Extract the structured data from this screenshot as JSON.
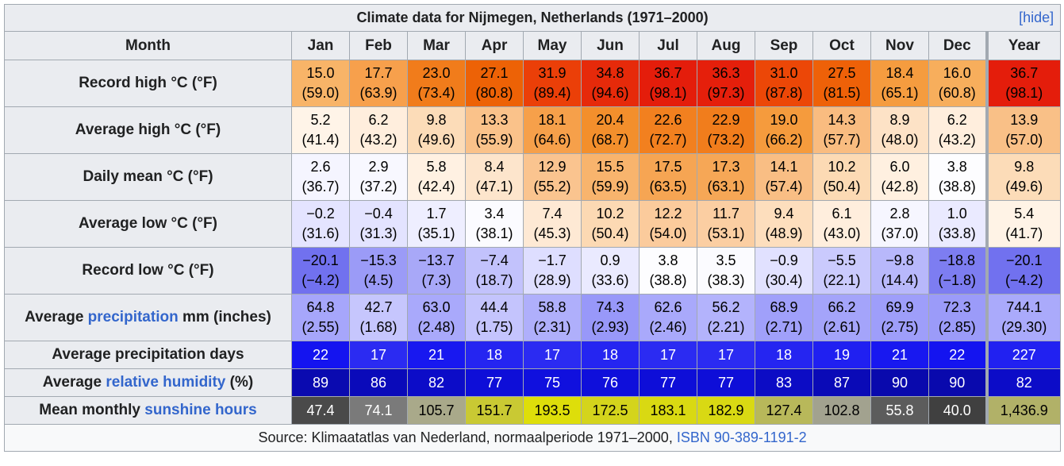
{
  "title": "Climate data for Nijmegen, Netherlands (1971–2000)",
  "hide_label": "[hide]",
  "month_header": "Month",
  "months": [
    "Jan",
    "Feb",
    "Mar",
    "Apr",
    "May",
    "Jun",
    "Jul",
    "Aug",
    "Sep",
    "Oct",
    "Nov",
    "Dec",
    "Year"
  ],
  "rows": [
    {
      "label_pre": "Record high °C (°F)",
      "label_link": "",
      "label_post": "",
      "cells": [
        {
          "c": "15.0",
          "f": "(59.0)",
          "bg": "#f8b468",
          "fg": "#000000"
        },
        {
          "c": "17.7",
          "f": "(63.9)",
          "bg": "#f7a04c",
          "fg": "#000000"
        },
        {
          "c": "23.0",
          "f": "(73.4)",
          "bg": "#f17c1b",
          "fg": "#000000"
        },
        {
          "c": "27.1",
          "f": "(80.8)",
          "bg": "#ed6206",
          "fg": "#000000"
        },
        {
          "c": "31.9",
          "f": "(89.4)",
          "bg": "#eb3f08",
          "fg": "#000000"
        },
        {
          "c": "34.8",
          "f": "(94.6)",
          "bg": "#e62a0a",
          "fg": "#000000"
        },
        {
          "c": "36.7",
          "f": "(98.1)",
          "bg": "#e41d0b",
          "fg": "#000000"
        },
        {
          "c": "36.3",
          "f": "(97.3)",
          "bg": "#e51f0b",
          "fg": "#000000"
        },
        {
          "c": "31.0",
          "f": "(87.8)",
          "bg": "#ec4707",
          "fg": "#000000"
        },
        {
          "c": "27.5",
          "f": "(81.5)",
          "bg": "#ee6108",
          "fg": "#000000"
        },
        {
          "c": "18.4",
          "f": "(65.1)",
          "bg": "#f59c3f",
          "fg": "#000000"
        },
        {
          "c": "16.0",
          "f": "(60.8)",
          "bg": "#f7ae5c",
          "fg": "#000000"
        },
        {
          "c": "36.7",
          "f": "(98.1)",
          "bg": "#e41d0b",
          "fg": "#000000"
        }
      ]
    },
    {
      "label_pre": "Average high °C (°F)",
      "label_link": "",
      "label_post": "",
      "cells": [
        {
          "c": "5.2",
          "f": "(41.4)",
          "bg": "#fff4e8",
          "fg": "#000000"
        },
        {
          "c": "6.2",
          "f": "(43.2)",
          "bg": "#ffeedd",
          "fg": "#000000"
        },
        {
          "c": "9.8",
          "f": "(49.6)",
          "bg": "#fcdcb8",
          "fg": "#000000"
        },
        {
          "c": "13.3",
          "f": "(55.9)",
          "bg": "#fac28a",
          "fg": "#000000"
        },
        {
          "c": "18.1",
          "f": "(64.6)",
          "bg": "#f6a04a",
          "fg": "#000000"
        },
        {
          "c": "20.4",
          "f": "(68.7)",
          "bg": "#f38f2c",
          "fg": "#000000"
        },
        {
          "c": "22.6",
          "f": "(72.7)",
          "bg": "#f2801f",
          "fg": "#000000"
        },
        {
          "c": "22.9",
          "f": "(73.2)",
          "bg": "#f17d1c",
          "fg": "#000000"
        },
        {
          "c": "19.0",
          "f": "(66.2)",
          "bg": "#f59b3d",
          "fg": "#000000"
        },
        {
          "c": "14.3",
          "f": "(57.7)",
          "bg": "#f9bc80",
          "fg": "#000000"
        },
        {
          "c": "8.9",
          "f": "(48.0)",
          "bg": "#fde2c6",
          "fg": "#000000"
        },
        {
          "c": "6.2",
          "f": "(43.2)",
          "bg": "#ffeedd",
          "fg": "#000000"
        },
        {
          "c": "13.9",
          "f": "(57.0)",
          "bg": "#f9c087",
          "fg": "#000000"
        }
      ]
    },
    {
      "label_pre": "Daily mean °C (°F)",
      "label_link": "",
      "label_post": "",
      "cells": [
        {
          "c": "2.6",
          "f": "(36.7)",
          "bg": "#f5f5ff",
          "fg": "#000000"
        },
        {
          "c": "2.9",
          "f": "(37.2)",
          "bg": "#f8f8ff",
          "fg": "#000000"
        },
        {
          "c": "5.8",
          "f": "(42.4)",
          "bg": "#fff1e2",
          "fg": "#000000"
        },
        {
          "c": "8.4",
          "f": "(47.1)",
          "bg": "#fde5cc",
          "fg": "#000000"
        },
        {
          "c": "12.9",
          "f": "(55.2)",
          "bg": "#fac48f",
          "fg": "#000000"
        },
        {
          "c": "15.5",
          "f": "(59.9)",
          "bg": "#f8b46d",
          "fg": "#000000"
        },
        {
          "c": "17.5",
          "f": "(63.5)",
          "bg": "#f6a553",
          "fg": "#000000"
        },
        {
          "c": "17.3",
          "f": "(63.1)",
          "bg": "#f6a756",
          "fg": "#000000"
        },
        {
          "c": "14.1",
          "f": "(57.4)",
          "bg": "#f9be84",
          "fg": "#000000"
        },
        {
          "c": "10.2",
          "f": "(50.4)",
          "bg": "#fcdab4",
          "fg": "#000000"
        },
        {
          "c": "6.0",
          "f": "(42.8)",
          "bg": "#fff0e0",
          "fg": "#000000"
        },
        {
          "c": "3.8",
          "f": "(38.8)",
          "bg": "#fdfdff",
          "fg": "#000000"
        },
        {
          "c": "9.8",
          "f": "(49.6)",
          "bg": "#fcdcb8",
          "fg": "#000000"
        }
      ]
    },
    {
      "label_pre": "Average low °C (°F)",
      "label_link": "",
      "label_post": "",
      "cells": [
        {
          "c": "−0.2",
          "f": "(31.6)",
          "bg": "#e4e4ff",
          "fg": "#000000"
        },
        {
          "c": "−0.4",
          "f": "(31.3)",
          "bg": "#e3e3ff",
          "fg": "#000000"
        },
        {
          "c": "1.7",
          "f": "(35.1)",
          "bg": "#eeeeff",
          "fg": "#000000"
        },
        {
          "c": "3.4",
          "f": "(38.1)",
          "bg": "#fbfbff",
          "fg": "#000000"
        },
        {
          "c": "7.4",
          "f": "(45.3)",
          "bg": "#fee9d4",
          "fg": "#000000"
        },
        {
          "c": "10.2",
          "f": "(50.4)",
          "bg": "#fcd9b3",
          "fg": "#000000"
        },
        {
          "c": "12.2",
          "f": "(54.0)",
          "bg": "#fbcb9c",
          "fg": "#000000"
        },
        {
          "c": "11.7",
          "f": "(53.1)",
          "bg": "#fbcea2",
          "fg": "#000000"
        },
        {
          "c": "9.4",
          "f": "(48.9)",
          "bg": "#fddebd",
          "fg": "#000000"
        },
        {
          "c": "6.1",
          "f": "(43.0)",
          "bg": "#ffeedd",
          "fg": "#000000"
        },
        {
          "c": "2.8",
          "f": "(37.0)",
          "bg": "#f6f6ff",
          "fg": "#000000"
        },
        {
          "c": "1.0",
          "f": "(33.8)",
          "bg": "#eaeaff",
          "fg": "#000000"
        },
        {
          "c": "5.4",
          "f": "(41.7)",
          "bg": "#fff3e6",
          "fg": "#000000"
        }
      ]
    },
    {
      "label_pre": "Record low °C (°F)",
      "label_link": "",
      "label_post": "",
      "cells": [
        {
          "c": "−20.1",
          "f": "(−4.2)",
          "bg": "#7171ef",
          "fg": "#000000"
        },
        {
          "c": "−15.3",
          "f": "(4.5)",
          "bg": "#9b9bf7",
          "fg": "#000000"
        },
        {
          "c": "−13.7",
          "f": "(7.3)",
          "bg": "#a8a8f8",
          "fg": "#000000"
        },
        {
          "c": "−7.4",
          "f": "(18.7)",
          "bg": "#c2c2fc",
          "fg": "#000000"
        },
        {
          "c": "−1.7",
          "f": "(28.9)",
          "bg": "#dedeff",
          "fg": "#000000"
        },
        {
          "c": "0.9",
          "f": "(33.6)",
          "bg": "#eaeaff",
          "fg": "#000000"
        },
        {
          "c": "3.8",
          "f": "(38.8)",
          "bg": "#fdfdff",
          "fg": "#000000"
        },
        {
          "c": "3.5",
          "f": "(38.3)",
          "bg": "#fbfbff",
          "fg": "#000000"
        },
        {
          "c": "−0.9",
          "f": "(30.4)",
          "bg": "#e1e1ff",
          "fg": "#000000"
        },
        {
          "c": "−5.5",
          "f": "(22.1)",
          "bg": "#cacafd",
          "fg": "#000000"
        },
        {
          "c": "−9.8",
          "f": "(14.4)",
          "bg": "#b8b8fb",
          "fg": "#000000"
        },
        {
          "c": "−18.8",
          "f": "(−1.8)",
          "bg": "#7d7df1",
          "fg": "#000000"
        },
        {
          "c": "−20.1",
          "f": "(−4.2)",
          "bg": "#7171ef",
          "fg": "#000000"
        }
      ]
    },
    {
      "label_pre": "Average ",
      "label_link": "precipitation",
      "label_post": " mm (inches)",
      "cells": [
        {
          "c": "64.8",
          "f": "(2.55)",
          "bg": "#a6a6fb",
          "fg": "#000000"
        },
        {
          "c": "42.7",
          "f": "(1.68)",
          "bg": "#c6c6fd",
          "fg": "#000000"
        },
        {
          "c": "63.0",
          "f": "(2.48)",
          "bg": "#a9a9fb",
          "fg": "#000000"
        },
        {
          "c": "44.4",
          "f": "(1.75)",
          "bg": "#c4c4fd",
          "fg": "#000000"
        },
        {
          "c": "58.8",
          "f": "(2.31)",
          "bg": "#afaffb",
          "fg": "#000000"
        },
        {
          "c": "74.3",
          "f": "(2.93)",
          "bg": "#9898f9",
          "fg": "#000000"
        },
        {
          "c": "62.6",
          "f": "(2.46)",
          "bg": "#a9a9fb",
          "fg": "#000000"
        },
        {
          "c": "56.2",
          "f": "(2.21)",
          "bg": "#b3b3fc",
          "fg": "#000000"
        },
        {
          "c": "68.9",
          "f": "(2.71)",
          "bg": "#a0a0fa",
          "fg": "#000000"
        },
        {
          "c": "66.2",
          "f": "(2.61)",
          "bg": "#a4a4fa",
          "fg": "#000000"
        },
        {
          "c": "69.9",
          "f": "(2.75)",
          "bg": "#9e9efa",
          "fg": "#000000"
        },
        {
          "c": "72.3",
          "f": "(2.85)",
          "bg": "#9b9bf9",
          "fg": "#000000"
        },
        {
          "c": "744.1",
          "f": "(29.30)",
          "bg": "#aaaafb",
          "fg": "#000000"
        }
      ]
    }
  ],
  "single_rows": [
    {
      "label_pre": "Average precipitation days",
      "label_link": "",
      "label_post": "",
      "cells": [
        {
          "v": "22",
          "bg": "#1414f0",
          "fg": "#ffffff"
        },
        {
          "v": "17",
          "bg": "#2b2bf2",
          "fg": "#ffffff"
        },
        {
          "v": "21",
          "bg": "#1818f0",
          "fg": "#ffffff"
        },
        {
          "v": "18",
          "bg": "#2525f1",
          "fg": "#ffffff"
        },
        {
          "v": "17",
          "bg": "#2b2bf2",
          "fg": "#ffffff"
        },
        {
          "v": "18",
          "bg": "#2525f1",
          "fg": "#ffffff"
        },
        {
          "v": "17",
          "bg": "#2b2bf2",
          "fg": "#ffffff"
        },
        {
          "v": "17",
          "bg": "#2b2bf2",
          "fg": "#ffffff"
        },
        {
          "v": "18",
          "bg": "#2525f1",
          "fg": "#ffffff"
        },
        {
          "v": "19",
          "bg": "#2020f1",
          "fg": "#ffffff"
        },
        {
          "v": "21",
          "bg": "#1818f0",
          "fg": "#ffffff"
        },
        {
          "v": "22",
          "bg": "#1414f0",
          "fg": "#ffffff"
        },
        {
          "v": "227",
          "bg": "#2121f1",
          "fg": "#ffffff"
        }
      ]
    },
    {
      "label_pre": "Average ",
      "label_link": "relative humidity",
      "label_post": " (%)",
      "cells": [
        {
          "v": "89",
          "bg": "#0a0ab0",
          "fg": "#ffffff"
        },
        {
          "v": "86",
          "bg": "#0a0aba",
          "fg": "#ffffff"
        },
        {
          "v": "82",
          "bg": "#0c0cc8",
          "fg": "#ffffff"
        },
        {
          "v": "77",
          "bg": "#0e0ed8",
          "fg": "#ffffff"
        },
        {
          "v": "75",
          "bg": "#1010de",
          "fg": "#ffffff"
        },
        {
          "v": "76",
          "bg": "#0f0fdb",
          "fg": "#ffffff"
        },
        {
          "v": "77",
          "bg": "#0e0ed8",
          "fg": "#ffffff"
        },
        {
          "v": "77",
          "bg": "#0e0ed8",
          "fg": "#ffffff"
        },
        {
          "v": "83",
          "bg": "#0c0cc5",
          "fg": "#ffffff"
        },
        {
          "v": "87",
          "bg": "#0a0ab7",
          "fg": "#ffffff"
        },
        {
          "v": "90",
          "bg": "#0909ad",
          "fg": "#ffffff"
        },
        {
          "v": "90",
          "bg": "#0909ad",
          "fg": "#ffffff"
        },
        {
          "v": "82",
          "bg": "#0c0cc8",
          "fg": "#ffffff"
        }
      ]
    },
    {
      "label_pre": "Mean monthly ",
      "label_link": "sunshine hours",
      "label_post": "",
      "cells": [
        {
          "v": "47.4",
          "bg": "#4a4a4a",
          "fg": "#ffffff"
        },
        {
          "v": "74.1",
          "bg": "#7a7a7a",
          "fg": "#ffffff"
        },
        {
          "v": "105.7",
          "bg": "#a9a98a",
          "fg": "#000000"
        },
        {
          "v": "151.7",
          "bg": "#c9c933",
          "fg": "#000000"
        },
        {
          "v": "193.5",
          "bg": "#dede0a",
          "fg": "#000000"
        },
        {
          "v": "172.5",
          "bg": "#d4d41c",
          "fg": "#000000"
        },
        {
          "v": "183.1",
          "bg": "#d9d912",
          "fg": "#000000"
        },
        {
          "v": "182.9",
          "bg": "#d9d913",
          "fg": "#000000"
        },
        {
          "v": "127.4",
          "bg": "#b8b85a",
          "fg": "#000000"
        },
        {
          "v": "102.8",
          "bg": "#a2a28f",
          "fg": "#000000"
        },
        {
          "v": "55.8",
          "bg": "#5c5c5c",
          "fg": "#ffffff"
        },
        {
          "v": "40.0",
          "bg": "#404040",
          "fg": "#ffffff"
        },
        {
          "v": "1,436.9",
          "bg": "#b1b168",
          "fg": "#000000"
        }
      ]
    }
  ],
  "source_pre": "Source: Klimaatatlas van Nederland, normaalperiode 1971–2000, ",
  "source_link": "ISBN 90-389-1191-2",
  "colors": {
    "link": "#3366cc",
    "header_bg": "#eaecf0",
    "border": "#a2a9b1",
    "source_bg": "#f8f9fa"
  }
}
